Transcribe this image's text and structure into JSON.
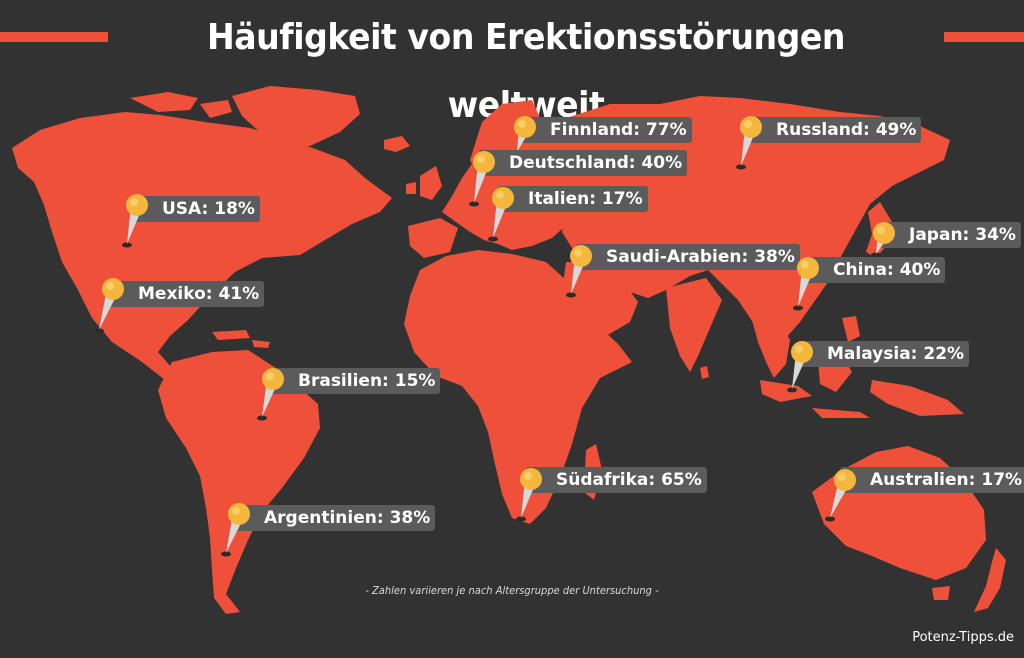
{
  "title": "Häufigkeit von Erektionsstörungen weltweit",
  "footnote": "- Zahlen variieren je nach Altersgruppe der Untersuchung -",
  "credit": "Potenz-Tipps.de",
  "colors": {
    "background": "#323232",
    "land": "#ef503a",
    "label_bg": "#5b5b5b",
    "pin_head": "#f5b73b"
  },
  "markers": [
    {
      "name": "USA",
      "text": "USA: 18%"
    },
    {
      "name": "Mexiko",
      "text": "Mexiko: 41%"
    },
    {
      "name": "Brasilien",
      "text": "Brasilien: 15%"
    },
    {
      "name": "Argentinien",
      "text": "Argentinien: 38%"
    },
    {
      "name": "Finnland",
      "text": "Finnland: 77%"
    },
    {
      "name": "Deutschland",
      "text": "Deutschland: 40%"
    },
    {
      "name": "Italien",
      "text": "Italien: 17%"
    },
    {
      "name": "Saudi-Arabien",
      "text": "Saudi-Arabien: 38%"
    },
    {
      "name": "Russland",
      "text": "Russland: 49%"
    },
    {
      "name": "Japan",
      "text": "Japan: 34%"
    },
    {
      "name": "China",
      "text": "China: 40%"
    },
    {
      "name": "Malaysia",
      "text": "Malaysia: 22%"
    },
    {
      "name": "Südafrika",
      "text": "Südafrika: 65%"
    },
    {
      "name": "Australien",
      "text": "Australien: 17%"
    }
  ]
}
